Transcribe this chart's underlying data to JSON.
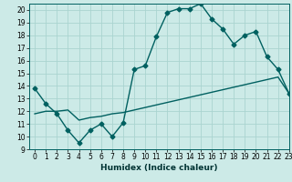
{
  "title": "",
  "xlabel": "Humidex (Indice chaleur)",
  "xlim": [
    -0.5,
    23
  ],
  "ylim": [
    9,
    20.5
  ],
  "yticks": [
    9,
    10,
    11,
    12,
    13,
    14,
    15,
    16,
    17,
    18,
    19,
    20
  ],
  "xticks": [
    0,
    1,
    2,
    3,
    4,
    5,
    6,
    7,
    8,
    9,
    10,
    11,
    12,
    13,
    14,
    15,
    16,
    17,
    18,
    19,
    20,
    21,
    22,
    23
  ],
  "bg_color": "#cceae7",
  "grid_color": "#aad4d0",
  "line_color": "#006060",
  "line1_x": [
    0,
    1,
    2,
    3,
    4,
    5,
    6,
    7,
    8,
    9,
    10,
    11,
    12,
    13,
    14,
    15,
    16,
    17,
    18,
    19,
    20,
    21,
    22,
    23
  ],
  "line1_y": [
    13.8,
    12.6,
    11.8,
    10.5,
    9.5,
    10.5,
    11.0,
    10.0,
    11.1,
    15.3,
    15.6,
    17.9,
    19.8,
    20.1,
    20.1,
    20.5,
    19.3,
    18.5,
    17.3,
    18.0,
    18.3,
    16.3,
    15.3,
    13.4
  ],
  "line2_x": [
    0,
    1,
    2,
    3,
    4,
    5,
    6,
    7,
    8,
    9,
    10,
    11,
    12,
    13,
    14,
    15,
    16,
    17,
    18,
    19,
    20,
    21,
    22,
    23
  ],
  "line2_y": [
    11.8,
    12.0,
    12.0,
    12.1,
    11.3,
    11.5,
    11.6,
    11.8,
    11.9,
    12.1,
    12.3,
    12.5,
    12.7,
    12.9,
    13.1,
    13.3,
    13.5,
    13.7,
    13.9,
    14.1,
    14.3,
    14.5,
    14.7,
    13.4
  ],
  "markersize": 2.5,
  "linewidth": 1.0,
  "tick_fontsize": 5.5,
  "xlabel_fontsize": 6.5
}
